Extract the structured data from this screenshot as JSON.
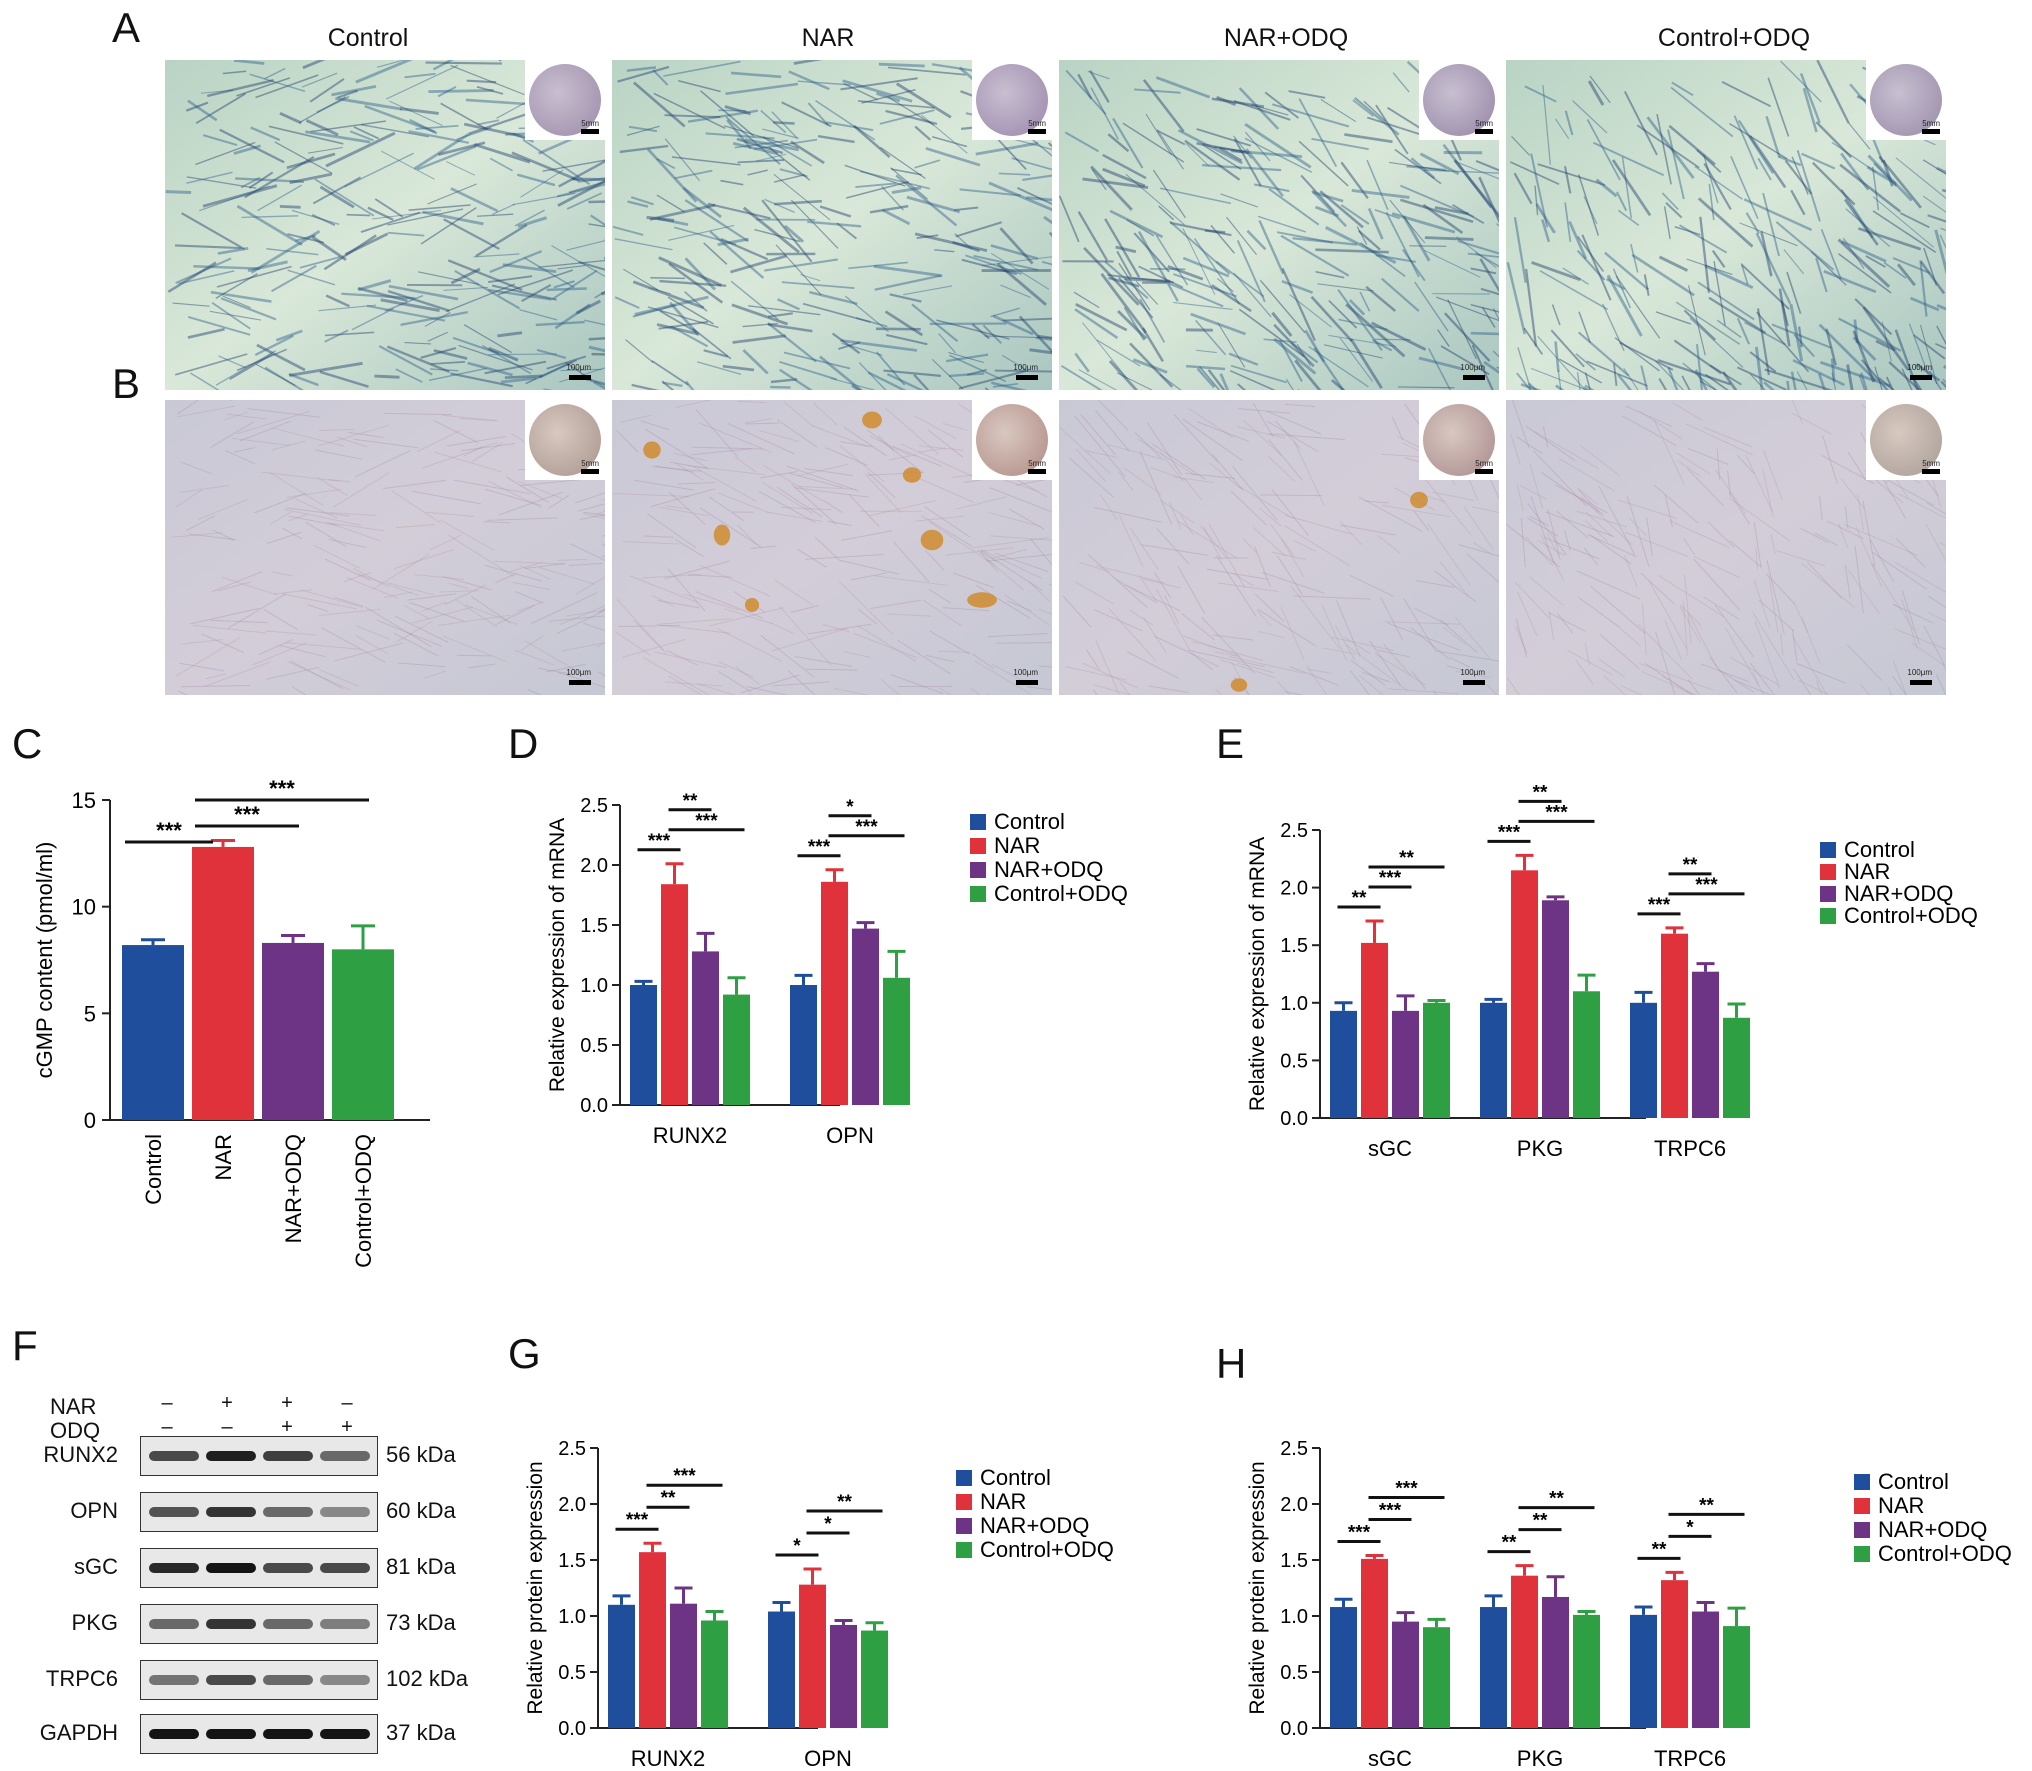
{
  "panels": {
    "A": "A",
    "B": "B",
    "C": "C",
    "D": "D",
    "E": "E",
    "F": "F",
    "G": "G",
    "H": "H"
  },
  "column_titles": [
    "Control",
    "NAR",
    "NAR+ODQ",
    "Control+ODQ"
  ],
  "scalebars": {
    "micro": "100μm",
    "dish": "5mm"
  },
  "colors": {
    "Control": "#1f4e9c",
    "NAR": "#e0323b",
    "NAR+ODQ": "#6d3485",
    "Control+ODQ": "#2ea043",
    "stainA": "#2f5f8a",
    "stainB": "#d08b2e"
  },
  "western": {
    "NAR_label": "NAR",
    "ODQ_label": "ODQ",
    "NAR_signs": [
      "–",
      "+",
      "+",
      "–"
    ],
    "ODQ_signs": [
      "–",
      "–",
      "+",
      "+"
    ],
    "rows": [
      {
        "name": "RUNX2",
        "kda": "56 kDa"
      },
      {
        "name": "OPN",
        "kda": "60 kDa"
      },
      {
        "name": "sGC",
        "kda": "81 kDa"
      },
      {
        "name": "PKG",
        "kda": "73 kDa"
      },
      {
        "name": "TRPC6",
        "kda": "102 kDa"
      },
      {
        "name": "GAPDH",
        "kda": "37 kDa"
      }
    ]
  },
  "chart_data": [
    {
      "id": "C",
      "type": "bar",
      "ylabel": "cGMP content (pmol/ml)",
      "ylim": [
        0,
        15
      ],
      "yticks": [
        "0",
        "5",
        "10",
        "15"
      ],
      "categories": [
        "Control",
        "NAR",
        "NAR+ODQ",
        "Control+ODQ"
      ],
      "values": [
        8.2,
        12.8,
        8.3,
        8.0
      ],
      "errors": [
        0.25,
        0.3,
        0.35,
        1.1
      ],
      "significance": [
        {
          "from": 0,
          "to": 1,
          "label": "***"
        },
        {
          "from": 1,
          "to": 2,
          "label": "***"
        },
        {
          "from": 1,
          "to": 3,
          "label": "***"
        }
      ]
    },
    {
      "id": "D",
      "type": "bar",
      "ylabel": "Relative expression of mRNA",
      "ylim": [
        0,
        2.5
      ],
      "yticks": [
        "0.0",
        "0.5",
        "1.0",
        "1.5",
        "2.0",
        "2.5"
      ],
      "categories": [
        "RUNX2",
        "OPN"
      ],
      "series": [
        {
          "name": "Control",
          "values": [
            1.0,
            1.0
          ],
          "errors": [
            0.03,
            0.08
          ]
        },
        {
          "name": "NAR",
          "values": [
            1.84,
            1.86
          ],
          "errors": [
            0.17,
            0.1
          ]
        },
        {
          "name": "NAR+ODQ",
          "values": [
            1.28,
            1.47
          ],
          "errors": [
            0.15,
            0.05
          ]
        },
        {
          "name": "Control+ODQ",
          "values": [
            0.92,
            1.06
          ],
          "errors": [
            0.14,
            0.22
          ]
        }
      ],
      "significance": [
        {
          "group": 0,
          "from": 0,
          "to": 1,
          "label": "***",
          "level": 0
        },
        {
          "group": 0,
          "from": 1,
          "to": 2,
          "label": "**",
          "level": 2
        },
        {
          "group": 0,
          "from": 1,
          "to": 3,
          "label": "***",
          "level": 1
        },
        {
          "group": 1,
          "from": 0,
          "to": 1,
          "label": "***",
          "level": 0
        },
        {
          "group": 1,
          "from": 1,
          "to": 2,
          "label": "*",
          "level": 2
        },
        {
          "group": 1,
          "from": 1,
          "to": 3,
          "label": "***",
          "level": 1
        }
      ]
    },
    {
      "id": "E",
      "type": "bar",
      "ylabel": "Relative expression of mRNA",
      "ylim": [
        0,
        2.5
      ],
      "yticks": [
        "0.0",
        "0.5",
        "1.0",
        "1.5",
        "2.0",
        "2.5"
      ],
      "categories": [
        "sGC",
        "PKG",
        "TRPC6"
      ],
      "series": [
        {
          "name": "Control",
          "values": [
            0.93,
            1.0,
            1.0
          ],
          "errors": [
            0.07,
            0.03,
            0.09
          ]
        },
        {
          "name": "NAR",
          "values": [
            1.52,
            2.15,
            1.6
          ],
          "errors": [
            0.19,
            0.13,
            0.05
          ]
        },
        {
          "name": "NAR+ODQ",
          "values": [
            0.93,
            1.89,
            1.27
          ],
          "errors": [
            0.13,
            0.03,
            0.07
          ]
        },
        {
          "name": "Control+ODQ",
          "values": [
            1.0,
            1.1,
            0.87
          ],
          "errors": [
            0.02,
            0.14,
            0.12
          ]
        }
      ],
      "significance": [
        {
          "group": 0,
          "from": 0,
          "to": 1,
          "label": "**",
          "level": 0
        },
        {
          "group": 0,
          "from": 1,
          "to": 2,
          "label": "***",
          "level": 1
        },
        {
          "group": 0,
          "from": 1,
          "to": 3,
          "label": "**",
          "level": 2
        },
        {
          "group": 1,
          "from": 0,
          "to": 1,
          "label": "***",
          "level": 0
        },
        {
          "group": 1,
          "from": 1,
          "to": 2,
          "label": "**",
          "level": 2
        },
        {
          "group": 1,
          "from": 1,
          "to": 3,
          "label": "***",
          "level": 1
        },
        {
          "group": 2,
          "from": 0,
          "to": 1,
          "label": "***",
          "level": 0
        },
        {
          "group": 2,
          "from": 1,
          "to": 2,
          "label": "**",
          "level": 2
        },
        {
          "group": 2,
          "from": 1,
          "to": 3,
          "label": "***",
          "level": 1
        }
      ]
    },
    {
      "id": "G",
      "type": "bar",
      "ylabel": "Relative protein expression",
      "ylim": [
        0,
        2.5
      ],
      "yticks": [
        "0.0",
        "0.5",
        "1.0",
        "1.5",
        "2.0",
        "2.5"
      ],
      "categories": [
        "RUNX2",
        "OPN"
      ],
      "series": [
        {
          "name": "Control",
          "values": [
            1.1,
            1.04
          ],
          "errors": [
            0.08,
            0.08
          ]
        },
        {
          "name": "NAR",
          "values": [
            1.57,
            1.28
          ],
          "errors": [
            0.08,
            0.14
          ]
        },
        {
          "name": "NAR+ODQ",
          "values": [
            1.11,
            0.92
          ],
          "errors": [
            0.14,
            0.04
          ]
        },
        {
          "name": "Control+ODQ",
          "values": [
            0.96,
            0.87
          ],
          "errors": [
            0.08,
            0.07
          ]
        }
      ],
      "significance": [
        {
          "group": 0,
          "from": 0,
          "to": 1,
          "label": "***",
          "level": 0
        },
        {
          "group": 0,
          "from": 1,
          "to": 2,
          "label": "**",
          "level": 1
        },
        {
          "group": 0,
          "from": 1,
          "to": 3,
          "label": "***",
          "level": 2
        },
        {
          "group": 1,
          "from": 0,
          "to": 1,
          "label": "*",
          "level": 0
        },
        {
          "group": 1,
          "from": 1,
          "to": 2,
          "label": "*",
          "level": 1
        },
        {
          "group": 1,
          "from": 1,
          "to": 3,
          "label": "**",
          "level": 2
        }
      ]
    },
    {
      "id": "H",
      "type": "bar",
      "ylabel": "Relative protein expression",
      "ylim": [
        0,
        2.5
      ],
      "yticks": [
        "0.0",
        "0.5",
        "1.0",
        "1.5",
        "2.0",
        "2.5"
      ],
      "categories": [
        "sGC",
        "PKG",
        "TRPC6"
      ],
      "series": [
        {
          "name": "Control",
          "values": [
            1.08,
            1.08,
            1.01
          ],
          "errors": [
            0.07,
            0.1,
            0.07
          ]
        },
        {
          "name": "NAR",
          "values": [
            1.51,
            1.36,
            1.32
          ],
          "errors": [
            0.03,
            0.09,
            0.07
          ]
        },
        {
          "name": "NAR+ODQ",
          "values": [
            0.95,
            1.17,
            1.04
          ],
          "errors": [
            0.08,
            0.18,
            0.08
          ]
        },
        {
          "name": "Control+ODQ",
          "values": [
            0.9,
            1.01,
            0.91
          ],
          "errors": [
            0.07,
            0.03,
            0.16
          ]
        }
      ],
      "significance": [
        {
          "group": 0,
          "from": 0,
          "to": 1,
          "label": "***",
          "level": 0
        },
        {
          "group": 0,
          "from": 1,
          "to": 2,
          "label": "***",
          "level": 1
        },
        {
          "group": 0,
          "from": 1,
          "to": 3,
          "label": "***",
          "level": 2
        },
        {
          "group": 1,
          "from": 0,
          "to": 1,
          "label": "**",
          "level": 0
        },
        {
          "group": 1,
          "from": 1,
          "to": 2,
          "label": "**",
          "level": 1
        },
        {
          "group": 1,
          "from": 1,
          "to": 3,
          "label": "**",
          "level": 2
        },
        {
          "group": 2,
          "from": 0,
          "to": 1,
          "label": "**",
          "level": 0
        },
        {
          "group": 2,
          "from": 1,
          "to": 2,
          "label": "*",
          "level": 1
        },
        {
          "group": 2,
          "from": 1,
          "to": 3,
          "label": "**",
          "level": 2
        }
      ]
    }
  ]
}
